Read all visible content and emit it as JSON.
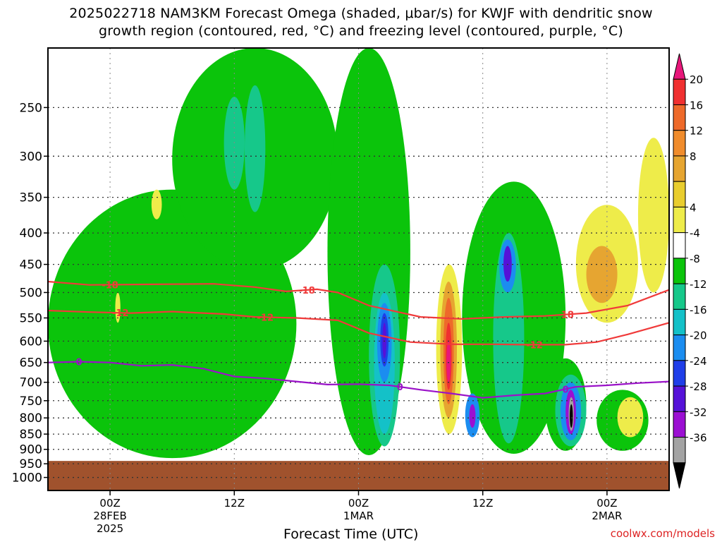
{
  "title": {
    "line1": "2025022718 NAM3KM Forecast Omega (shaded, μbar/s) for KWJF with dendritic snow",
    "line2": "growth region (contoured, red, °C) and freezing level (contoured, purple, °C)"
  },
  "credit": "coolwx.com/models",
  "chart_data": {
    "type": "heatmap",
    "title": "2025022718 NAM3KM Forecast Omega (shaded, μbar/s) for KWJF with dendritic snow growth region (contoured, red, °C) and freezing level (contoured, purple, °C)",
    "xlabel": "Forecast Time (UTC)",
    "ylabel": "",
    "x_unit": "hours since 2025-02-27 18Z",
    "xlim": [
      0,
      60
    ],
    "x_ticks": [
      {
        "hour": 6,
        "label": [
          "00Z",
          "28FEB",
          "2025"
        ]
      },
      {
        "hour": 18,
        "label": [
          "12Z"
        ]
      },
      {
        "hour": 30,
        "label": [
          "00Z",
          "1MAR"
        ]
      },
      {
        "hour": 42,
        "label": [
          "12Z"
        ]
      },
      {
        "hour": 54,
        "label": [
          "00Z",
          "2MAR"
        ]
      }
    ],
    "y_axis": {
      "scale": "log-pressure",
      "ylim": [
        1050,
        200
      ],
      "unit": "hPa",
      "inverted": true
    },
    "y_ticks": [
      250,
      300,
      350,
      400,
      450,
      500,
      550,
      600,
      650,
      700,
      750,
      800,
      850,
      900,
      950,
      1000
    ],
    "grid": true,
    "surface_pressure": 940,
    "surface_color": "#a0522d",
    "colorbar": {
      "labels": [
        20,
        16,
        12,
        8,
        4,
        -4,
        -8,
        -12,
        -16,
        -20,
        -24,
        -28,
        -32,
        -36
      ],
      "bins": [
        {
          "color": "#e8177a"
        },
        {
          "color": "#f03030"
        },
        {
          "color": "#ee6a2a"
        },
        {
          "color": "#f08c2c"
        },
        {
          "color": "#e6a531"
        },
        {
          "color": "#e9cd2e"
        },
        {
          "color": "#eeec4a"
        },
        {
          "color": "#ffffff"
        },
        {
          "color": "#0bc40b"
        },
        {
          "color": "#16c88a"
        },
        {
          "color": "#14c1c8"
        },
        {
          "color": "#1b8df0"
        },
        {
          "color": "#1f3ee8"
        },
        {
          "color": "#5512d8"
        },
        {
          "color": "#9b0fd2"
        },
        {
          "color": "#a3a3a3"
        },
        {
          "color": "#000000"
        }
      ]
    },
    "omega_regions": [
      {
        "level": -4,
        "x": [
          0,
          24
        ],
        "p": [
          340,
          930
        ]
      },
      {
        "level": -4,
        "x": [
          12,
          28
        ],
        "p": [
          200,
          460
        ]
      },
      {
        "level": -4,
        "x": [
          27,
          35
        ],
        "p": [
          200,
          920
        ]
      },
      {
        "level": -4,
        "x": [
          40,
          50
        ],
        "p": [
          330,
          915
        ]
      },
      {
        "level": -4,
        "x": [
          48,
          52
        ],
        "p": [
          640,
          905
        ]
      },
      {
        "level": -4,
        "x": [
          53,
          58
        ],
        "p": [
          720,
          905
        ]
      },
      {
        "level": -8,
        "x": [
          17,
          19
        ],
        "p": [
          240,
          340
        ]
      },
      {
        "level": -8,
        "x": [
          19,
          21
        ],
        "p": [
          230,
          370
        ]
      },
      {
        "level": -8,
        "x": [
          31,
          34
        ],
        "p": [
          450,
          890
        ]
      },
      {
        "level": -8,
        "x": [
          43,
          46
        ],
        "p": [
          400,
          880
        ]
      },
      {
        "level": -8,
        "x": [
          49,
          52
        ],
        "p": [
          680,
          890
        ]
      },
      {
        "level": -12,
        "x": [
          31.5,
          33.5
        ],
        "p": [
          500,
          850
        ]
      },
      {
        "level": -16,
        "x": [
          31.8,
          33.2
        ],
        "p": [
          520,
          700
        ]
      },
      {
        "level": -20,
        "x": [
          32.1,
          32.9
        ],
        "p": [
          540,
          660
        ]
      },
      {
        "level": -24,
        "x": [
          32.3,
          32.7
        ],
        "p": [
          560,
          640
        ]
      },
      {
        "level": -16,
        "x": [
          43.6,
          45.2
        ],
        "p": [
          410,
          500
        ]
      },
      {
        "level": -24,
        "x": [
          44.0,
          44.8
        ],
        "p": [
          420,
          480
        ]
      },
      {
        "level": -16,
        "x": [
          40.3,
          41.7
        ],
        "p": [
          730,
          860
        ]
      },
      {
        "level": -28,
        "x": [
          40.7,
          41.3
        ],
        "p": [
          760,
          830
        ]
      },
      {
        "level": -16,
        "x": [
          49.5,
          51.5
        ],
        "p": [
          700,
          870
        ]
      },
      {
        "level": -28,
        "x": [
          50.0,
          51.0
        ],
        "p": [
          720,
          850
        ]
      },
      {
        "level": -32,
        "x": [
          50.3,
          50.8
        ],
        "p": [
          740,
          840
        ]
      },
      {
        "level": -36,
        "x": [
          50.4,
          50.7
        ],
        "p": [
          760,
          830
        ]
      },
      {
        "level": 4,
        "x": [
          6.5,
          7
        ],
        "p": [
          500,
          560
        ]
      },
      {
        "level": 4,
        "x": [
          10,
          11
        ],
        "p": [
          340,
          380
        ]
      },
      {
        "level": 4,
        "x": [
          37.5,
          40
        ],
        "p": [
          450,
          850
        ]
      },
      {
        "level": 8,
        "x": [
          37.9,
          39.5
        ],
        "p": [
          480,
          800
        ]
      },
      {
        "level": 12,
        "x": [
          38.2,
          39.2
        ],
        "p": [
          510,
          760
        ]
      },
      {
        "level": 16,
        "x": [
          38.4,
          39.0
        ],
        "p": [
          560,
          720
        ]
      },
      {
        "level": 20,
        "x": [
          38.5,
          38.9
        ],
        "p": [
          600,
          700
        ]
      },
      {
        "level": 4,
        "x": [
          51,
          57
        ],
        "p": [
          360,
          560
        ]
      },
      {
        "level": 8,
        "x": [
          52,
          55
        ],
        "p": [
          420,
          520
        ]
      },
      {
        "level": 4,
        "x": [
          57,
          60
        ],
        "p": [
          280,
          500
        ]
      },
      {
        "level": 4,
        "x": [
          55,
          57.5
        ],
        "p": [
          740,
          860
        ]
      }
    ],
    "contours": [
      {
        "name": "-18",
        "color": "#f03a3a",
        "labels_at": [
          6,
          25,
          50
        ],
        "x": [
          0,
          4,
          10,
          16,
          20,
          23,
          26,
          28,
          31,
          36,
          40,
          44,
          48,
          52,
          56,
          60
        ],
        "p": [
          480,
          486,
          485,
          484,
          490,
          498,
          494,
          500,
          525,
          548,
          552,
          548,
          546,
          540,
          525,
          495
        ]
      },
      {
        "name": "-12",
        "color": "#f03a3a",
        "labels_at": [
          7,
          21,
          47
        ],
        "x": [
          0,
          4,
          8,
          12,
          17,
          20,
          24,
          28,
          31,
          35,
          39,
          43,
          46,
          50,
          53,
          56,
          60
        ],
        "p": [
          535,
          538,
          540,
          537,
          542,
          548,
          550,
          555,
          582,
          602,
          607,
          607,
          608,
          608,
          602,
          585,
          560
        ]
      },
      {
        "name": "0",
        "color": "#9a12c8",
        "labels_at": [
          3,
          34,
          50
        ],
        "x": [
          0,
          3,
          6,
          9,
          12,
          15,
          18,
          21,
          24,
          27,
          30,
          33,
          36,
          39,
          42,
          45,
          48,
          51,
          54,
          57,
          60
        ],
        "p": [
          650,
          648,
          650,
          658,
          656,
          665,
          685,
          690,
          698,
          706,
          705,
          708,
          720,
          730,
          742,
          735,
          730,
          712,
          708,
          702,
          698
        ]
      }
    ]
  }
}
